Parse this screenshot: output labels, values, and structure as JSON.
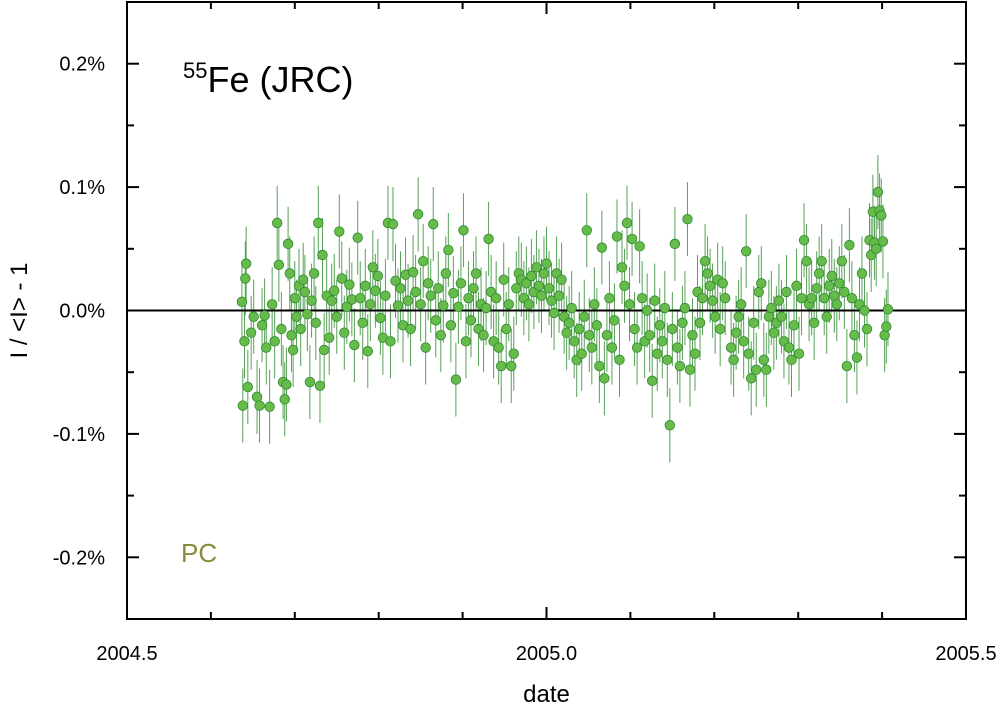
{
  "chart_data": {
    "type": "scatter",
    "title": {
      "superscript": "55",
      "text": "Fe (JRC)"
    },
    "annotation": "PC",
    "xlabel": "date",
    "ylabel": "I / <I> - 1",
    "xlim": [
      2004.5,
      2005.5
    ],
    "ylim": [
      -0.25,
      0.25
    ],
    "x_ticks": [
      2004.5,
      2005.0,
      2005.5
    ],
    "x_tick_labels": [
      "2004.5",
      "2005.0",
      "2005.5"
    ],
    "y_ticks": [
      0.2,
      0.1,
      0.0,
      -0.1,
      -0.2
    ],
    "y_tick_labels": [
      "0.2%",
      "0.1%",
      "0.0%",
      "-0.1%",
      "-0.2%"
    ],
    "reference_line": 0.0,
    "grid": false,
    "colors": {
      "marker_fill": "#66bb4a",
      "marker_edge": "#2e8b2e",
      "error_bar": "#2a8a2a",
      "annotation": "#8a8a3a",
      "reference_line": "#000000"
    },
    "series": [
      {
        "error_bar": 0.03,
        "points": [
          [
            2004.637,
            0.007
          ],
          [
            2004.638,
            -0.077
          ],
          [
            2004.64,
            -0.025
          ],
          [
            2004.641,
            0.026
          ],
          [
            2004.642,
            0.038
          ],
          [
            2004.644,
            -0.062
          ],
          [
            2004.648,
            -0.018
          ],
          [
            2004.651,
            -0.005
          ],
          [
            2004.655,
            -0.07
          ],
          [
            2004.658,
            -0.077
          ],
          [
            2004.661,
            -0.012
          ],
          [
            2004.664,
            -0.004
          ],
          [
            2004.666,
            -0.03
          ],
          [
            2004.67,
            -0.078
          ],
          [
            2004.673,
            0.005
          ],
          [
            2004.676,
            -0.025
          ],
          [
            2004.679,
            0.071
          ],
          [
            2004.681,
            0.037
          ],
          [
            2004.684,
            -0.015
          ],
          [
            2004.686,
            -0.058
          ],
          [
            2004.688,
            -0.072
          ],
          [
            2004.69,
            -0.06
          ],
          [
            2004.692,
            0.054
          ],
          [
            2004.694,
            0.03
          ],
          [
            2004.696,
            -0.02
          ],
          [
            2004.698,
            -0.032
          ],
          [
            2004.7,
            0.01
          ],
          [
            2004.702,
            -0.005
          ],
          [
            2004.705,
            0.02
          ],
          [
            2004.707,
            -0.015
          ],
          [
            2004.71,
            0.025
          ],
          [
            2004.712,
            0.015
          ],
          [
            2004.715,
            -0.003
          ],
          [
            2004.718,
            -0.058
          ],
          [
            2004.72,
            0.008
          ],
          [
            2004.723,
            0.03
          ],
          [
            2004.725,
            -0.01
          ],
          [
            2004.728,
            0.071
          ],
          [
            2004.73,
            -0.061
          ],
          [
            2004.733,
            0.045
          ],
          [
            2004.735,
            -0.032
          ],
          [
            2004.738,
            0.012
          ],
          [
            2004.741,
            -0.022
          ],
          [
            2004.744,
            0.008
          ],
          [
            2004.747,
            0.016
          ],
          [
            2004.75,
            -0.005
          ],
          [
            2004.753,
            0.064
          ],
          [
            2004.756,
            0.026
          ],
          [
            2004.759,
            -0.018
          ],
          [
            2004.762,
            0.003
          ],
          [
            2004.765,
            0.021
          ],
          [
            2004.768,
            0.009
          ],
          [
            2004.771,
            -0.028
          ],
          [
            2004.775,
            0.059
          ],
          [
            2004.778,
            0.01
          ],
          [
            2004.781,
            -0.01
          ],
          [
            2004.784,
            0.02
          ],
          [
            2004.787,
            -0.033
          ],
          [
            2004.79,
            0.005
          ],
          [
            2004.793,
            0.035
          ],
          [
            2004.796,
            0.016
          ],
          [
            2004.799,
            0.028
          ],
          [
            2004.802,
            -0.006
          ],
          [
            2004.805,
            -0.022
          ],
          [
            2004.808,
            0.012
          ],
          [
            2004.811,
            0.071
          ],
          [
            2004.814,
            -0.025
          ],
          [
            2004.817,
            0.07
          ],
          [
            2004.82,
            0.024
          ],
          [
            2004.823,
            0.004
          ],
          [
            2004.826,
            0.018
          ],
          [
            2004.829,
            -0.012
          ],
          [
            2004.832,
            0.029
          ],
          [
            2004.835,
            0.008
          ],
          [
            2004.838,
            -0.015
          ],
          [
            2004.841,
            0.031
          ],
          [
            2004.844,
            0.015
          ],
          [
            2004.847,
            0.078
          ],
          [
            2004.85,
            0.005
          ],
          [
            2004.853,
            0.04
          ],
          [
            2004.856,
            -0.03
          ],
          [
            2004.859,
            0.022
          ],
          [
            2004.862,
            0.012
          ],
          [
            2004.865,
            0.07
          ],
          [
            2004.868,
            -0.008
          ],
          [
            2004.871,
            0.018
          ],
          [
            2004.874,
            -0.02
          ],
          [
            2004.877,
            0.004
          ],
          [
            2004.88,
            0.03
          ],
          [
            2004.883,
            0.049
          ],
          [
            2004.886,
            -0.012
          ],
          [
            2004.889,
            0.014
          ],
          [
            2004.892,
            -0.056
          ],
          [
            2004.895,
            0.003
          ],
          [
            2004.898,
            0.022
          ],
          [
            2004.901,
            0.065
          ],
          [
            2004.904,
            -0.025
          ],
          [
            2004.907,
            0.01
          ],
          [
            2004.91,
            -0.008
          ],
          [
            2004.913,
            0.018
          ],
          [
            2004.916,
            0.03
          ],
          [
            2004.919,
            -0.015
          ],
          [
            2004.922,
            0.005
          ],
          [
            2004.925,
            -0.02
          ],
          [
            2004.928,
            0.002
          ],
          [
            2004.931,
            0.058
          ],
          [
            2004.934,
            0.015
          ],
          [
            2004.937,
            -0.025
          ],
          [
            2004.94,
            0.01
          ],
          [
            2004.943,
            -0.03
          ],
          [
            2004.946,
            -0.045
          ],
          [
            2004.949,
            0.025
          ],
          [
            2004.952,
            -0.015
          ],
          [
            2004.955,
            0.005
          ],
          [
            2004.958,
            -0.045
          ],
          [
            2004.961,
            -0.035
          ],
          [
            2004.964,
            0.018
          ],
          [
            2004.967,
            0.03
          ],
          [
            2004.97,
            0.025
          ],
          [
            2004.973,
            0.01
          ],
          [
            2004.976,
            0.022
          ],
          [
            2004.979,
            0.005
          ],
          [
            2004.982,
            0.028
          ],
          [
            2004.985,
            0.015
          ],
          [
            2004.988,
            0.035
          ],
          [
            2004.991,
            0.02
          ],
          [
            2004.994,
            0.012
          ],
          [
            2004.997,
            0.03
          ],
          [
            2005.0,
            0.038
          ],
          [
            2005.003,
            0.018
          ],
          [
            2005.006,
            0.008
          ],
          [
            2005.009,
            -0.002
          ],
          [
            2005.012,
            0.03
          ],
          [
            2005.015,
            0.012
          ],
          [
            2005.018,
            0.025
          ],
          [
            2005.021,
            -0.005
          ],
          [
            2005.024,
            -0.018
          ],
          [
            2005.027,
            -0.01
          ],
          [
            2005.03,
            0.002
          ],
          [
            2005.033,
            -0.025
          ],
          [
            2005.036,
            -0.04
          ],
          [
            2005.039,
            -0.015
          ],
          [
            2005.042,
            -0.035
          ],
          [
            2005.045,
            -0.005
          ],
          [
            2005.048,
            0.065
          ],
          [
            2005.051,
            -0.02
          ],
          [
            2005.054,
            -0.03
          ],
          [
            2005.057,
            0.005
          ],
          [
            2005.06,
            -0.012
          ],
          [
            2005.063,
            -0.045
          ],
          [
            2005.066,
            0.051
          ],
          [
            2005.069,
            -0.055
          ],
          [
            2005.072,
            -0.02
          ],
          [
            2005.075,
            0.01
          ],
          [
            2005.078,
            -0.03
          ],
          [
            2005.081,
            -0.008
          ],
          [
            2005.084,
            0.06
          ],
          [
            2005.087,
            -0.04
          ],
          [
            2005.09,
            0.035
          ],
          [
            2005.093,
            0.02
          ],
          [
            2005.096,
            0.071
          ],
          [
            2005.099,
            0.005
          ],
          [
            2005.102,
            0.058
          ],
          [
            2005.105,
            -0.015
          ],
          [
            2005.108,
            -0.03
          ],
          [
            2005.111,
            0.052
          ],
          [
            2005.114,
            0.01
          ],
          [
            2005.117,
            -0.025
          ],
          [
            2005.12,
            0.0
          ],
          [
            2005.123,
            -0.02
          ],
          [
            2005.126,
            -0.057
          ],
          [
            2005.129,
            0.008
          ],
          [
            2005.132,
            -0.035
          ],
          [
            2005.135,
            -0.012
          ],
          [
            2005.138,
            -0.025
          ],
          [
            2005.141,
            0.002
          ],
          [
            2005.144,
            -0.04
          ],
          [
            2005.147,
            -0.093
          ],
          [
            2005.15,
            -0.015
          ],
          [
            2005.153,
            0.054
          ],
          [
            2005.156,
            -0.03
          ],
          [
            2005.159,
            -0.045
          ],
          [
            2005.162,
            -0.01
          ],
          [
            2005.165,
            0.002
          ],
          [
            2005.168,
            0.074
          ],
          [
            2005.171,
            -0.048
          ],
          [
            2005.174,
            -0.02
          ],
          [
            2005.177,
            -0.035
          ],
          [
            2005.18,
            0.015
          ],
          [
            2005.183,
            -0.01
          ],
          [
            2005.186,
            0.01
          ],
          [
            2005.189,
            0.04
          ],
          [
            2005.192,
            0.03
          ],
          [
            2005.195,
            0.02
          ],
          [
            2005.198,
            0.008
          ],
          [
            2005.201,
            -0.005
          ],
          [
            2005.204,
            0.025
          ],
          [
            2005.207,
            -0.015
          ],
          [
            2005.21,
            0.022
          ],
          [
            2005.213,
            0.01
          ],
          [
            2005.22,
            -0.03
          ],
          [
            2005.223,
            -0.04
          ],
          [
            2005.226,
            -0.018
          ],
          [
            2005.229,
            -0.005
          ],
          [
            2005.232,
            0.005
          ],
          [
            2005.235,
            -0.025
          ],
          [
            2005.238,
            0.048
          ],
          [
            2005.241,
            -0.035
          ],
          [
            2005.244,
            -0.055
          ],
          [
            2005.247,
            -0.01
          ],
          [
            2005.25,
            -0.048
          ],
          [
            2005.253,
            0.015
          ],
          [
            2005.256,
            0.022
          ],
          [
            2005.259,
            -0.04
          ],
          [
            2005.262,
            -0.048
          ],
          [
            2005.265,
            -0.005
          ],
          [
            2005.268,
            0.002
          ],
          [
            2005.271,
            -0.018
          ],
          [
            2005.274,
            -0.01
          ],
          [
            2005.277,
            0.008
          ],
          [
            2005.28,
            -0.005
          ],
          [
            2005.283,
            -0.025
          ],
          [
            2005.286,
            0.015
          ],
          [
            2005.289,
            -0.03
          ],
          [
            2005.292,
            -0.04
          ],
          [
            2005.295,
            -0.012
          ],
          [
            2005.298,
            0.02
          ],
          [
            2005.301,
            -0.035
          ],
          [
            2005.304,
            0.01
          ],
          [
            2005.307,
            0.057
          ],
          [
            2005.31,
            0.04
          ],
          [
            2005.313,
            0.005
          ],
          [
            2005.316,
            0.01
          ],
          [
            2005.319,
            -0.01
          ],
          [
            2005.322,
            0.018
          ],
          [
            2005.325,
            0.03
          ],
          [
            2005.328,
            0.04
          ],
          [
            2005.331,
            0.01
          ],
          [
            2005.334,
            -0.005
          ],
          [
            2005.337,
            0.02
          ],
          [
            2005.34,
            0.028
          ],
          [
            2005.343,
            0.012
          ],
          [
            2005.346,
            0.005
          ],
          [
            2005.349,
            0.022
          ],
          [
            2005.352,
            0.04
          ],
          [
            2005.355,
            0.015
          ],
          [
            2005.358,
            -0.045
          ],
          [
            2005.361,
            0.053
          ],
          [
            2005.364,
            0.01
          ],
          [
            2005.367,
            -0.02
          ],
          [
            2005.37,
            -0.038
          ],
          [
            2005.373,
            0.005
          ],
          [
            2005.376,
            0.03
          ],
          [
            2005.379,
            0.0
          ],
          [
            2005.382,
            -0.015
          ],
          [
            2005.385,
            0.057
          ],
          [
            2005.387,
            0.045
          ],
          [
            2005.389,
            0.08
          ],
          [
            2005.391,
            0.055
          ],
          [
            2005.393,
            0.05
          ],
          [
            2005.395,
            0.096
          ],
          [
            2005.397,
            0.081
          ],
          [
            2005.399,
            0.077
          ],
          [
            2005.401,
            0.056
          ],
          [
            2005.403,
            -0.02
          ],
          [
            2005.405,
            -0.013
          ],
          [
            2005.407,
            0.001
          ]
        ]
      }
    ]
  }
}
